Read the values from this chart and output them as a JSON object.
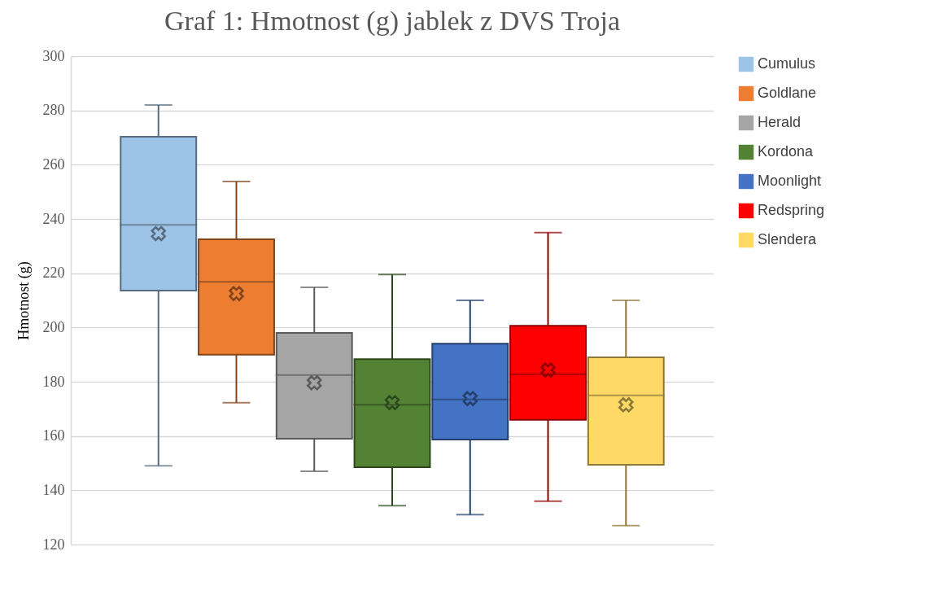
{
  "chart_data": {
    "type": "box",
    "title": "Graf 1: Hmotnost (g) jablek z DVS Troja",
    "ylabel": "Hmotnost (g)",
    "ylim": [
      120,
      300
    ],
    "yticks": [
      120,
      140,
      160,
      180,
      200,
      220,
      240,
      260,
      280,
      300
    ],
    "grid": "y",
    "legend": "right",
    "tick_labels": "y",
    "categories": [
      null
    ],
    "series": [
      {
        "name": "Cumulus",
        "color": "#9dc3e6",
        "boxes": [
          {
            "low": 149,
            "q1": 213.6,
            "median": 237.8,
            "q3": 270.3,
            "high": 282,
            "mean": 234.6
          }
        ]
      },
      {
        "name": "Goldlane",
        "color": "#ed7d31",
        "boxes": [
          {
            "low": 172.3,
            "q1": 190,
            "median": 216.8,
            "q3": 232.5,
            "high": 253.8,
            "mean": 212.5
          }
        ]
      },
      {
        "name": "Herald",
        "color": "#a5a5a5",
        "boxes": [
          {
            "low": 147,
            "q1": 159,
            "median": 182.5,
            "q3": 198,
            "high": 214.8,
            "mean": 179.6
          }
        ]
      },
      {
        "name": "Kordona",
        "color": "#548235",
        "boxes": [
          {
            "low": 134.3,
            "q1": 148.5,
            "median": 171.5,
            "q3": 188.3,
            "high": 219.5,
            "mean": 172.3
          }
        ]
      },
      {
        "name": "Moonlight",
        "color": "#4472c4",
        "boxes": [
          {
            "low": 131,
            "q1": 158.7,
            "median": 173.5,
            "q3": 194,
            "high": 210,
            "mean": 173.8
          }
        ]
      },
      {
        "name": "Redspring",
        "color": "#ff0000",
        "boxes": [
          {
            "low": 136,
            "q1": 166,
            "median": 182.8,
            "q3": 200.6,
            "high": 235,
            "mean": 184.3
          }
        ]
      },
      {
        "name": "Slendera",
        "color": "#ffd966",
        "boxes": [
          {
            "low": 127,
            "q1": 149.4,
            "median": 175,
            "q3": 189,
            "high": 210,
            "mean": 171.5
          }
        ]
      }
    ]
  }
}
